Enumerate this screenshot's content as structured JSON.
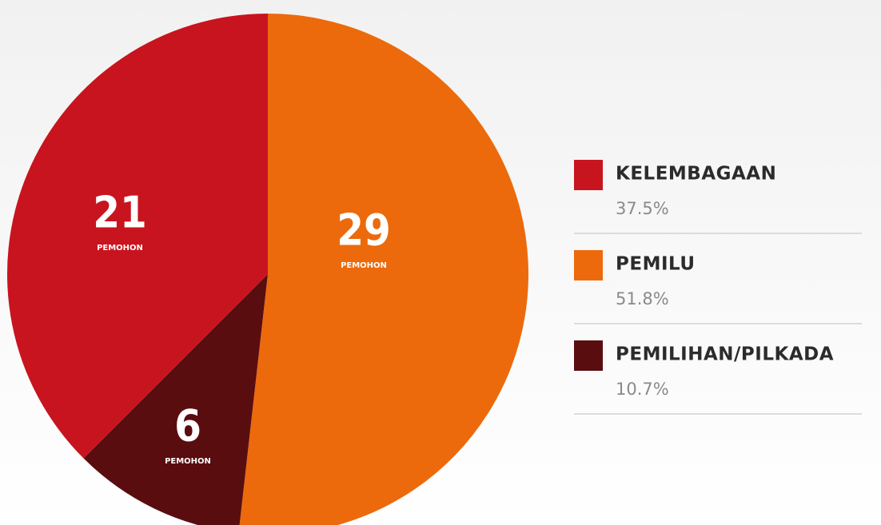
{
  "chart_data": {
    "type": "pie",
    "categories": [
      "KELEMBAGAAN",
      "PEMILU",
      "PEMILIHAN/PILKADA"
    ],
    "values": [
      21,
      29,
      6
    ],
    "percent_labels": [
      "37.5%",
      "51.8%",
      "10.7%"
    ],
    "unit_label": "PEMOHON",
    "colors": [
      "#c8141e",
      "#ec6a0c",
      "#5a0d0f"
    ]
  }
}
